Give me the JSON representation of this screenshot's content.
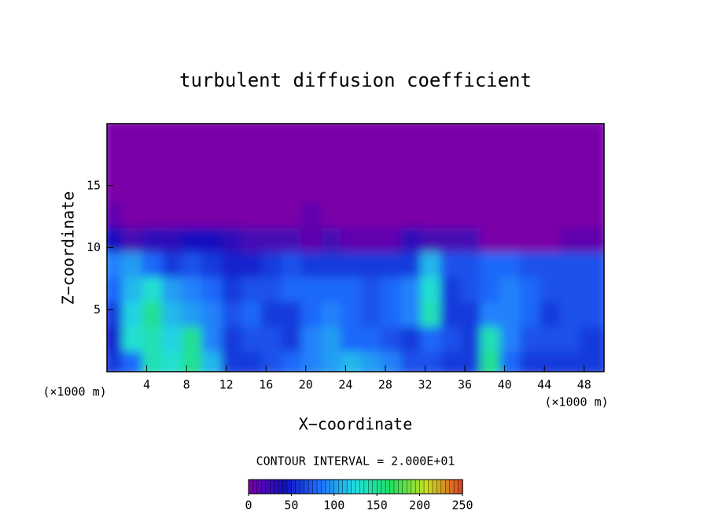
{
  "chart_data": {
    "type": "contour",
    "title": "turbulent diffusion coefficient",
    "x_label": "X−coordinate",
    "y_label": "Z−coordinate",
    "x_unit": "(×1000 m)",
    "y_unit": "(×1000 m)",
    "contour_note": "CONTOUR INTERVAL = 2.000E+01",
    "xlim": [
      0,
      50
    ],
    "ylim": [
      0,
      20
    ],
    "xticks": [
      4,
      8,
      12,
      16,
      20,
      24,
      28,
      32,
      36,
      40,
      44,
      48
    ],
    "yticks": [
      5,
      10,
      15
    ],
    "x": [
      1,
      3,
      5,
      7,
      9,
      11,
      13,
      15,
      17,
      19,
      21,
      23,
      25,
      27,
      29,
      31,
      33,
      35,
      37,
      39,
      41,
      43,
      45,
      47,
      49
    ],
    "z": [
      1,
      3,
      5,
      7,
      9,
      11,
      13,
      15,
      17,
      19
    ],
    "values": [
      [
        60,
        80,
        140,
        130,
        150,
        110,
        60,
        60,
        70,
        80,
        90,
        100,
        110,
        100,
        90,
        70,
        70,
        60,
        60,
        150,
        80,
        60,
        60,
        60,
        60
      ],
      [
        50,
        130,
        140,
        120,
        150,
        90,
        60,
        70,
        70,
        60,
        90,
        100,
        80,
        80,
        70,
        60,
        80,
        70,
        60,
        140,
        90,
        70,
        70,
        70,
        60
      ],
      [
        60,
        120,
        150,
        110,
        100,
        90,
        70,
        80,
        60,
        60,
        80,
        90,
        80,
        70,
        80,
        90,
        140,
        60,
        60,
        90,
        90,
        80,
        60,
        70,
        70
      ],
      [
        80,
        110,
        130,
        100,
        90,
        80,
        60,
        70,
        70,
        80,
        80,
        80,
        80,
        70,
        80,
        90,
        130,
        60,
        70,
        80,
        90,
        80,
        70,
        70,
        70
      ],
      [
        90,
        100,
        80,
        60,
        70,
        60,
        50,
        50,
        60,
        70,
        60,
        60,
        60,
        60,
        60,
        60,
        110,
        70,
        70,
        80,
        80,
        70,
        70,
        70,
        70
      ],
      [
        40,
        20,
        30,
        30,
        40,
        40,
        30,
        20,
        20,
        20,
        10,
        20,
        10,
        10,
        10,
        30,
        20,
        20,
        20,
        0,
        0,
        0,
        0,
        10,
        10
      ],
      [
        10,
        0,
        0,
        0,
        0,
        0,
        0,
        0,
        0,
        0,
        10,
        0,
        0,
        0,
        0,
        0,
        0,
        0,
        0,
        0,
        0,
        0,
        0,
        0,
        0
      ],
      [
        0,
        0,
        0,
        0,
        0,
        0,
        0,
        0,
        0,
        0,
        0,
        0,
        0,
        0,
        0,
        0,
        0,
        0,
        0,
        0,
        0,
        0,
        0,
        0,
        0
      ],
      [
        0,
        0,
        0,
        0,
        0,
        0,
        0,
        0,
        0,
        0,
        0,
        0,
        0,
        0,
        0,
        0,
        0,
        0,
        0,
        0,
        0,
        0,
        0,
        0,
        0
      ],
      [
        0,
        0,
        0,
        0,
        0,
        0,
        0,
        0,
        0,
        0,
        0,
        0,
        0,
        0,
        0,
        0,
        0,
        0,
        0,
        0,
        0,
        0,
        0,
        0,
        0
      ]
    ],
    "colorbar_lim": [
      0,
      250
    ],
    "colorbar_ticks": [
      0,
      50,
      100,
      150,
      200,
      250
    ],
    "colormap": [
      "#7a00a8",
      "#1010c0",
      "#2070ff",
      "#20e0e0",
      "#20e060",
      "#c8e020",
      "#e04020"
    ]
  }
}
